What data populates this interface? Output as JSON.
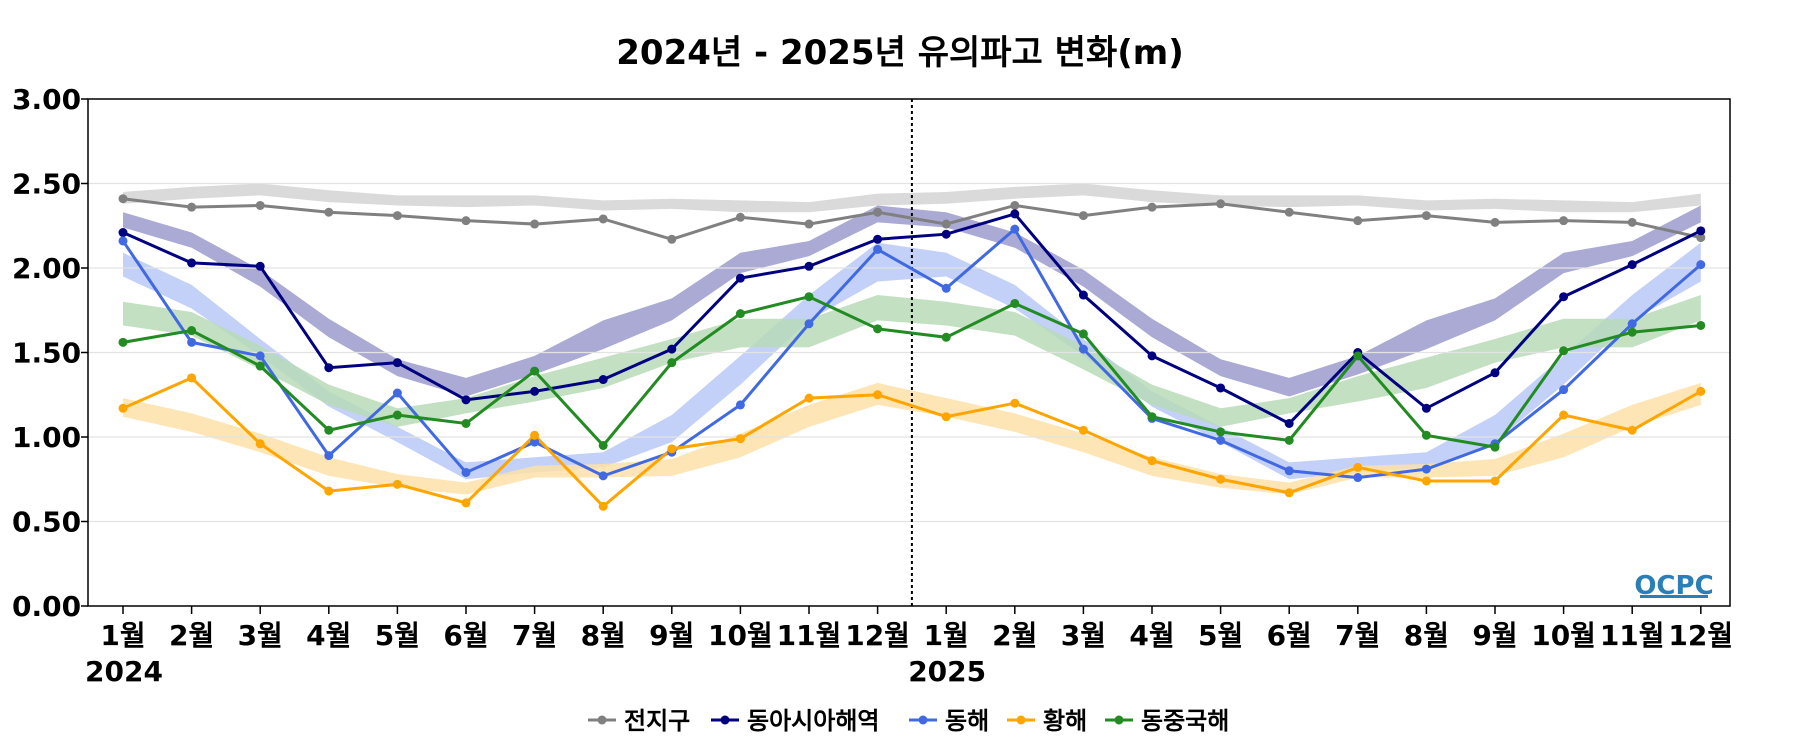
{
  "chart_data": {
    "type": "line",
    "title": "2024년 - 2025년 유의파고 변화(m)",
    "xlabel": "",
    "ylabel": "",
    "categories": [
      "1월",
      "2월",
      "3월",
      "4월",
      "5월",
      "6월",
      "7월",
      "8월",
      "9월",
      "10월",
      "11월",
      "12월",
      "1월",
      "2월",
      "3월",
      "4월",
      "5월",
      "6월",
      "7월",
      "8월",
      "9월",
      "10월",
      "11월",
      "12월"
    ],
    "year_labels": [
      {
        "index": 0,
        "label": "2024"
      },
      {
        "index": 12,
        "label": "2025"
      }
    ],
    "year_divider_after_index": 11.5,
    "ylim": [
      0,
      3
    ],
    "yticks": [
      "0.00",
      "0.50",
      "1.00",
      "1.50",
      "2.00",
      "2.50",
      "3.00"
    ],
    "grid": true,
    "legend_position": "bottom-center",
    "logo_text": "OCPC",
    "series": [
      {
        "name": "전지구",
        "color": "#808080",
        "values": [
          2.41,
          2.36,
          2.37,
          2.33,
          2.31,
          2.28,
          2.26,
          2.29,
          2.17,
          2.3,
          2.26,
          2.33,
          2.26,
          2.37,
          2.31,
          2.36,
          2.38,
          2.33,
          2.28,
          2.31,
          2.27,
          2.28,
          2.27,
          2.18
        ],
        "band_color": "#d3d3d3",
        "band_low": [
          2.38,
          2.41,
          2.43,
          2.39,
          2.37,
          2.36,
          2.37,
          2.34,
          2.35,
          2.33,
          2.33,
          2.37,
          2.38,
          2.41,
          2.43,
          2.39,
          2.37,
          2.36,
          2.37,
          2.34,
          2.35,
          2.33,
          2.33,
          2.37
        ],
        "band_high": [
          2.45,
          2.48,
          2.5,
          2.46,
          2.43,
          2.43,
          2.43,
          2.4,
          2.41,
          2.4,
          2.39,
          2.44,
          2.45,
          2.48,
          2.5,
          2.46,
          2.43,
          2.43,
          2.43,
          2.4,
          2.41,
          2.4,
          2.39,
          2.44
        ]
      },
      {
        "name": "동아시아해역",
        "color": "#000080",
        "values": [
          2.21,
          2.03,
          2.01,
          1.41,
          1.44,
          1.22,
          1.27,
          1.34,
          1.52,
          1.94,
          2.01,
          2.17,
          2.2,
          2.32,
          1.84,
          1.48,
          1.29,
          1.08,
          1.5,
          1.17,
          1.38,
          1.83,
          2.02,
          2.22
        ],
        "band_color": "#9b9bce",
        "band_low": [
          2.24,
          2.12,
          1.89,
          1.59,
          1.36,
          1.24,
          1.37,
          1.52,
          1.69,
          1.97,
          2.07,
          2.27,
          2.24,
          2.12,
          1.89,
          1.59,
          1.36,
          1.24,
          1.37,
          1.52,
          1.69,
          1.97,
          2.07,
          2.27
        ],
        "band_high": [
          2.33,
          2.21,
          1.99,
          1.7,
          1.46,
          1.35,
          1.48,
          1.69,
          1.82,
          2.09,
          2.16,
          2.37,
          2.33,
          2.21,
          1.99,
          1.7,
          1.46,
          1.35,
          1.48,
          1.69,
          1.82,
          2.09,
          2.16,
          2.37
        ]
      },
      {
        "name": "동해",
        "color": "#4169e1",
        "values": [
          2.16,
          1.56,
          1.48,
          0.89,
          1.26,
          0.79,
          0.97,
          0.77,
          0.91,
          1.19,
          1.67,
          2.11,
          1.88,
          2.23,
          1.52,
          1.11,
          0.98,
          0.8,
          0.76,
          0.81,
          0.96,
          1.28,
          1.67,
          2.02
        ],
        "band_color": "#b9c9f7",
        "band_low": [
          1.95,
          1.76,
          1.48,
          1.18,
          0.97,
          0.75,
          0.79,
          0.82,
          0.97,
          1.31,
          1.69,
          1.92,
          1.95,
          1.76,
          1.48,
          1.18,
          0.97,
          0.75,
          0.79,
          0.82,
          0.97,
          1.31,
          1.69,
          1.92
        ],
        "band_high": [
          2.09,
          1.9,
          1.58,
          1.27,
          1.06,
          0.85,
          0.88,
          0.91,
          1.13,
          1.48,
          1.84,
          2.15,
          2.09,
          1.9,
          1.58,
          1.27,
          1.06,
          0.85,
          0.88,
          0.91,
          1.13,
          1.48,
          1.84,
          2.15
        ]
      },
      {
        "name": "황해",
        "color": "#ffa500",
        "values": [
          1.17,
          1.35,
          0.96,
          0.68,
          0.72,
          0.61,
          1.01,
          0.59,
          0.93,
          0.99,
          1.23,
          1.25,
          1.12,
          1.2,
          1.04,
          0.86,
          0.75,
          0.67,
          0.82,
          0.74,
          0.74,
          1.13,
          1.04,
          1.27
        ],
        "band_color": "#fde0a8",
        "band_low": [
          1.12,
          1.03,
          0.91,
          0.77,
          0.7,
          0.66,
          0.76,
          0.76,
          0.77,
          0.88,
          1.06,
          1.19,
          1.12,
          1.03,
          0.91,
          0.77,
          0.7,
          0.66,
          0.76,
          0.76,
          0.77,
          0.88,
          1.06,
          1.19
        ],
        "band_high": [
          1.23,
          1.14,
          1.02,
          0.88,
          0.78,
          0.73,
          0.83,
          0.84,
          0.87,
          1.02,
          1.19,
          1.32,
          1.23,
          1.14,
          1.02,
          0.88,
          0.78,
          0.73,
          0.83,
          0.84,
          0.87,
          1.02,
          1.19,
          1.32
        ]
      },
      {
        "name": "동중국해",
        "color": "#228b22",
        "values": [
          1.56,
          1.63,
          1.42,
          1.04,
          1.13,
          1.08,
          1.39,
          0.95,
          1.44,
          1.73,
          1.83,
          1.64,
          1.59,
          1.79,
          1.61,
          1.12,
          1.03,
          0.98,
          1.48,
          1.01,
          0.94,
          1.51,
          1.62,
          1.66
        ],
        "band_color": "#b8dbb8",
        "band_low": [
          1.66,
          1.6,
          1.4,
          1.19,
          1.06,
          1.14,
          1.21,
          1.29,
          1.44,
          1.53,
          1.53,
          1.69,
          1.66,
          1.6,
          1.4,
          1.19,
          1.06,
          1.14,
          1.21,
          1.29,
          1.44,
          1.53,
          1.53,
          1.69
        ],
        "band_high": [
          1.8,
          1.74,
          1.54,
          1.31,
          1.17,
          1.23,
          1.36,
          1.47,
          1.58,
          1.7,
          1.7,
          1.84,
          1.8,
          1.74,
          1.54,
          1.31,
          1.17,
          1.23,
          1.36,
          1.47,
          1.58,
          1.7,
          1.7,
          1.84
        ]
      }
    ]
  }
}
